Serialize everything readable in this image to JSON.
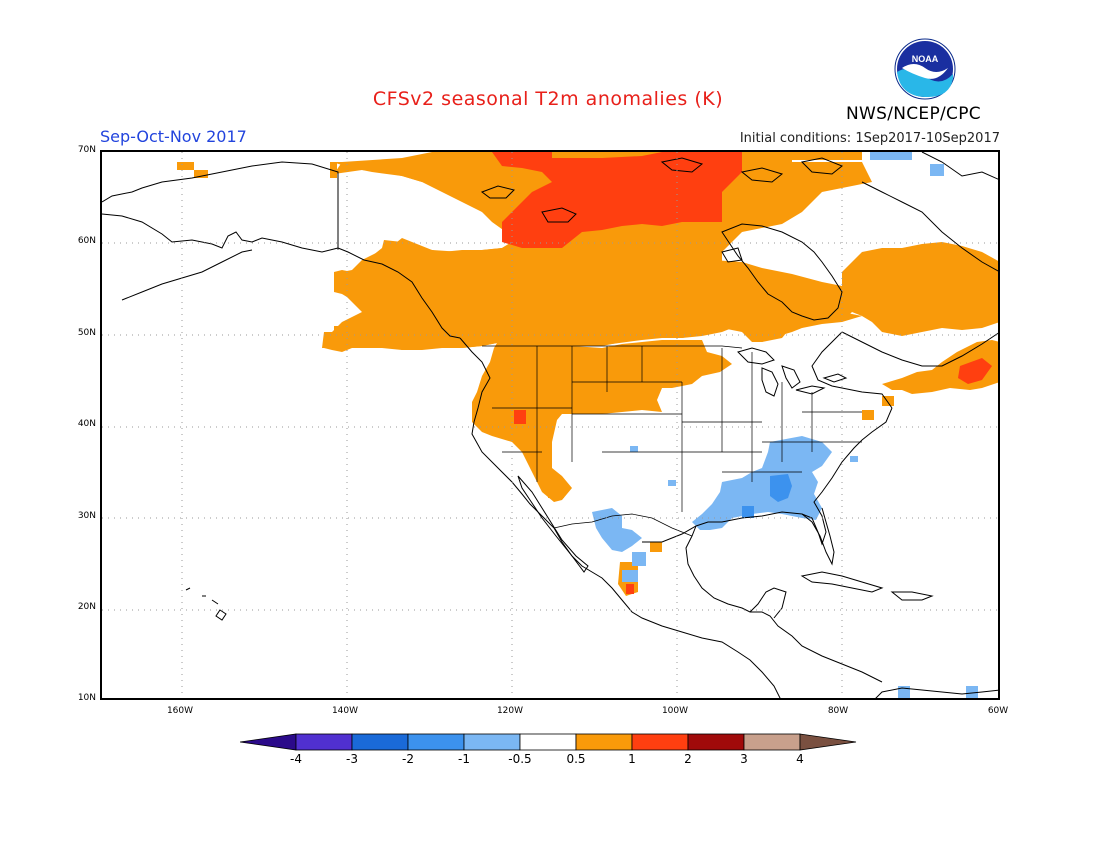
{
  "title": "CFSv2 seasonal T2m anomalies (K)",
  "season": "Sep-Oct-Nov 2017",
  "initial_conditions": "Initial conditions: 1Sep2017-10Sep2017",
  "agency": "NWS/NCEP/CPC",
  "logo_text": "NOAA",
  "colors": {
    "title": "#e8201a",
    "season": "#2244dd",
    "land_outline": "#000000",
    "grid": "#9a9a9a"
  },
  "lat_labels": [
    "70N",
    "60N",
    "50N",
    "40N",
    "30N",
    "20N",
    "10N"
  ],
  "lon_labels": [
    "160W",
    "140W",
    "120W",
    "100W",
    "80W",
    "60W"
  ],
  "legend": {
    "colors": [
      "#2b0a8a",
      "#5030d0",
      "#1a6ad8",
      "#3c92ee",
      "#7bb7f3",
      "#ffffff",
      "#f99a0a",
      "#ff3f10",
      "#a00a0a",
      "#c8a08c",
      "#7a5040"
    ],
    "labels": [
      "-4",
      "-3",
      "-2",
      "-1",
      "-0.5",
      "0.5",
      "1",
      "2",
      "3",
      "4"
    ]
  }
}
